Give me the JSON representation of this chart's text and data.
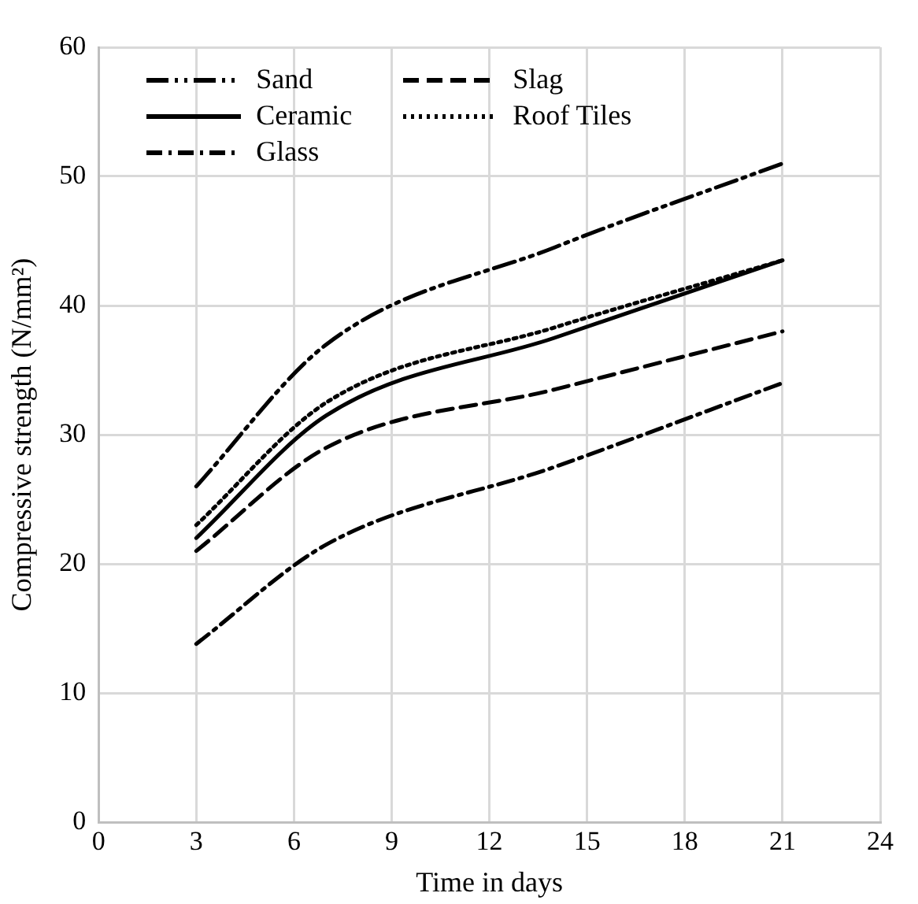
{
  "chart_data": {
    "type": "line",
    "xlabel": "Time in days",
    "ylabel": "Compressive strength (N/mm²)",
    "x": [
      3,
      7,
      14,
      21
    ],
    "series": [
      {
        "name": "Sand",
        "color": "#000000",
        "line_style": "dashdotdot",
        "values": [
          26,
          37,
          44.5,
          51
        ]
      },
      {
        "name": "Slag",
        "color": "#000000",
        "line_style": "dashed",
        "values": [
          21,
          29,
          33.5,
          38
        ]
      },
      {
        "name": "Ceramic",
        "color": "#000000",
        "line_style": "solid",
        "values": [
          22,
          31.5,
          37.5,
          43.5
        ]
      },
      {
        "name": "Roof Tiles",
        "color": "#000000",
        "line_style": "dotted",
        "values": [
          23,
          32.5,
          38.3,
          43.5
        ]
      },
      {
        "name": "Glass",
        "color": "#000000",
        "line_style": "dashdot",
        "values": [
          13.8,
          21.5,
          27.5,
          34
        ]
      }
    ],
    "xlim": [
      0,
      24
    ],
    "xticks": [
      0,
      3,
      6,
      9,
      12,
      15,
      18,
      21,
      24
    ],
    "ylim": [
      0,
      60
    ],
    "yticks": [
      0,
      10,
      20,
      30,
      40,
      50,
      60
    ],
    "grid": true,
    "legend": "top left",
    "marker": "none"
  }
}
